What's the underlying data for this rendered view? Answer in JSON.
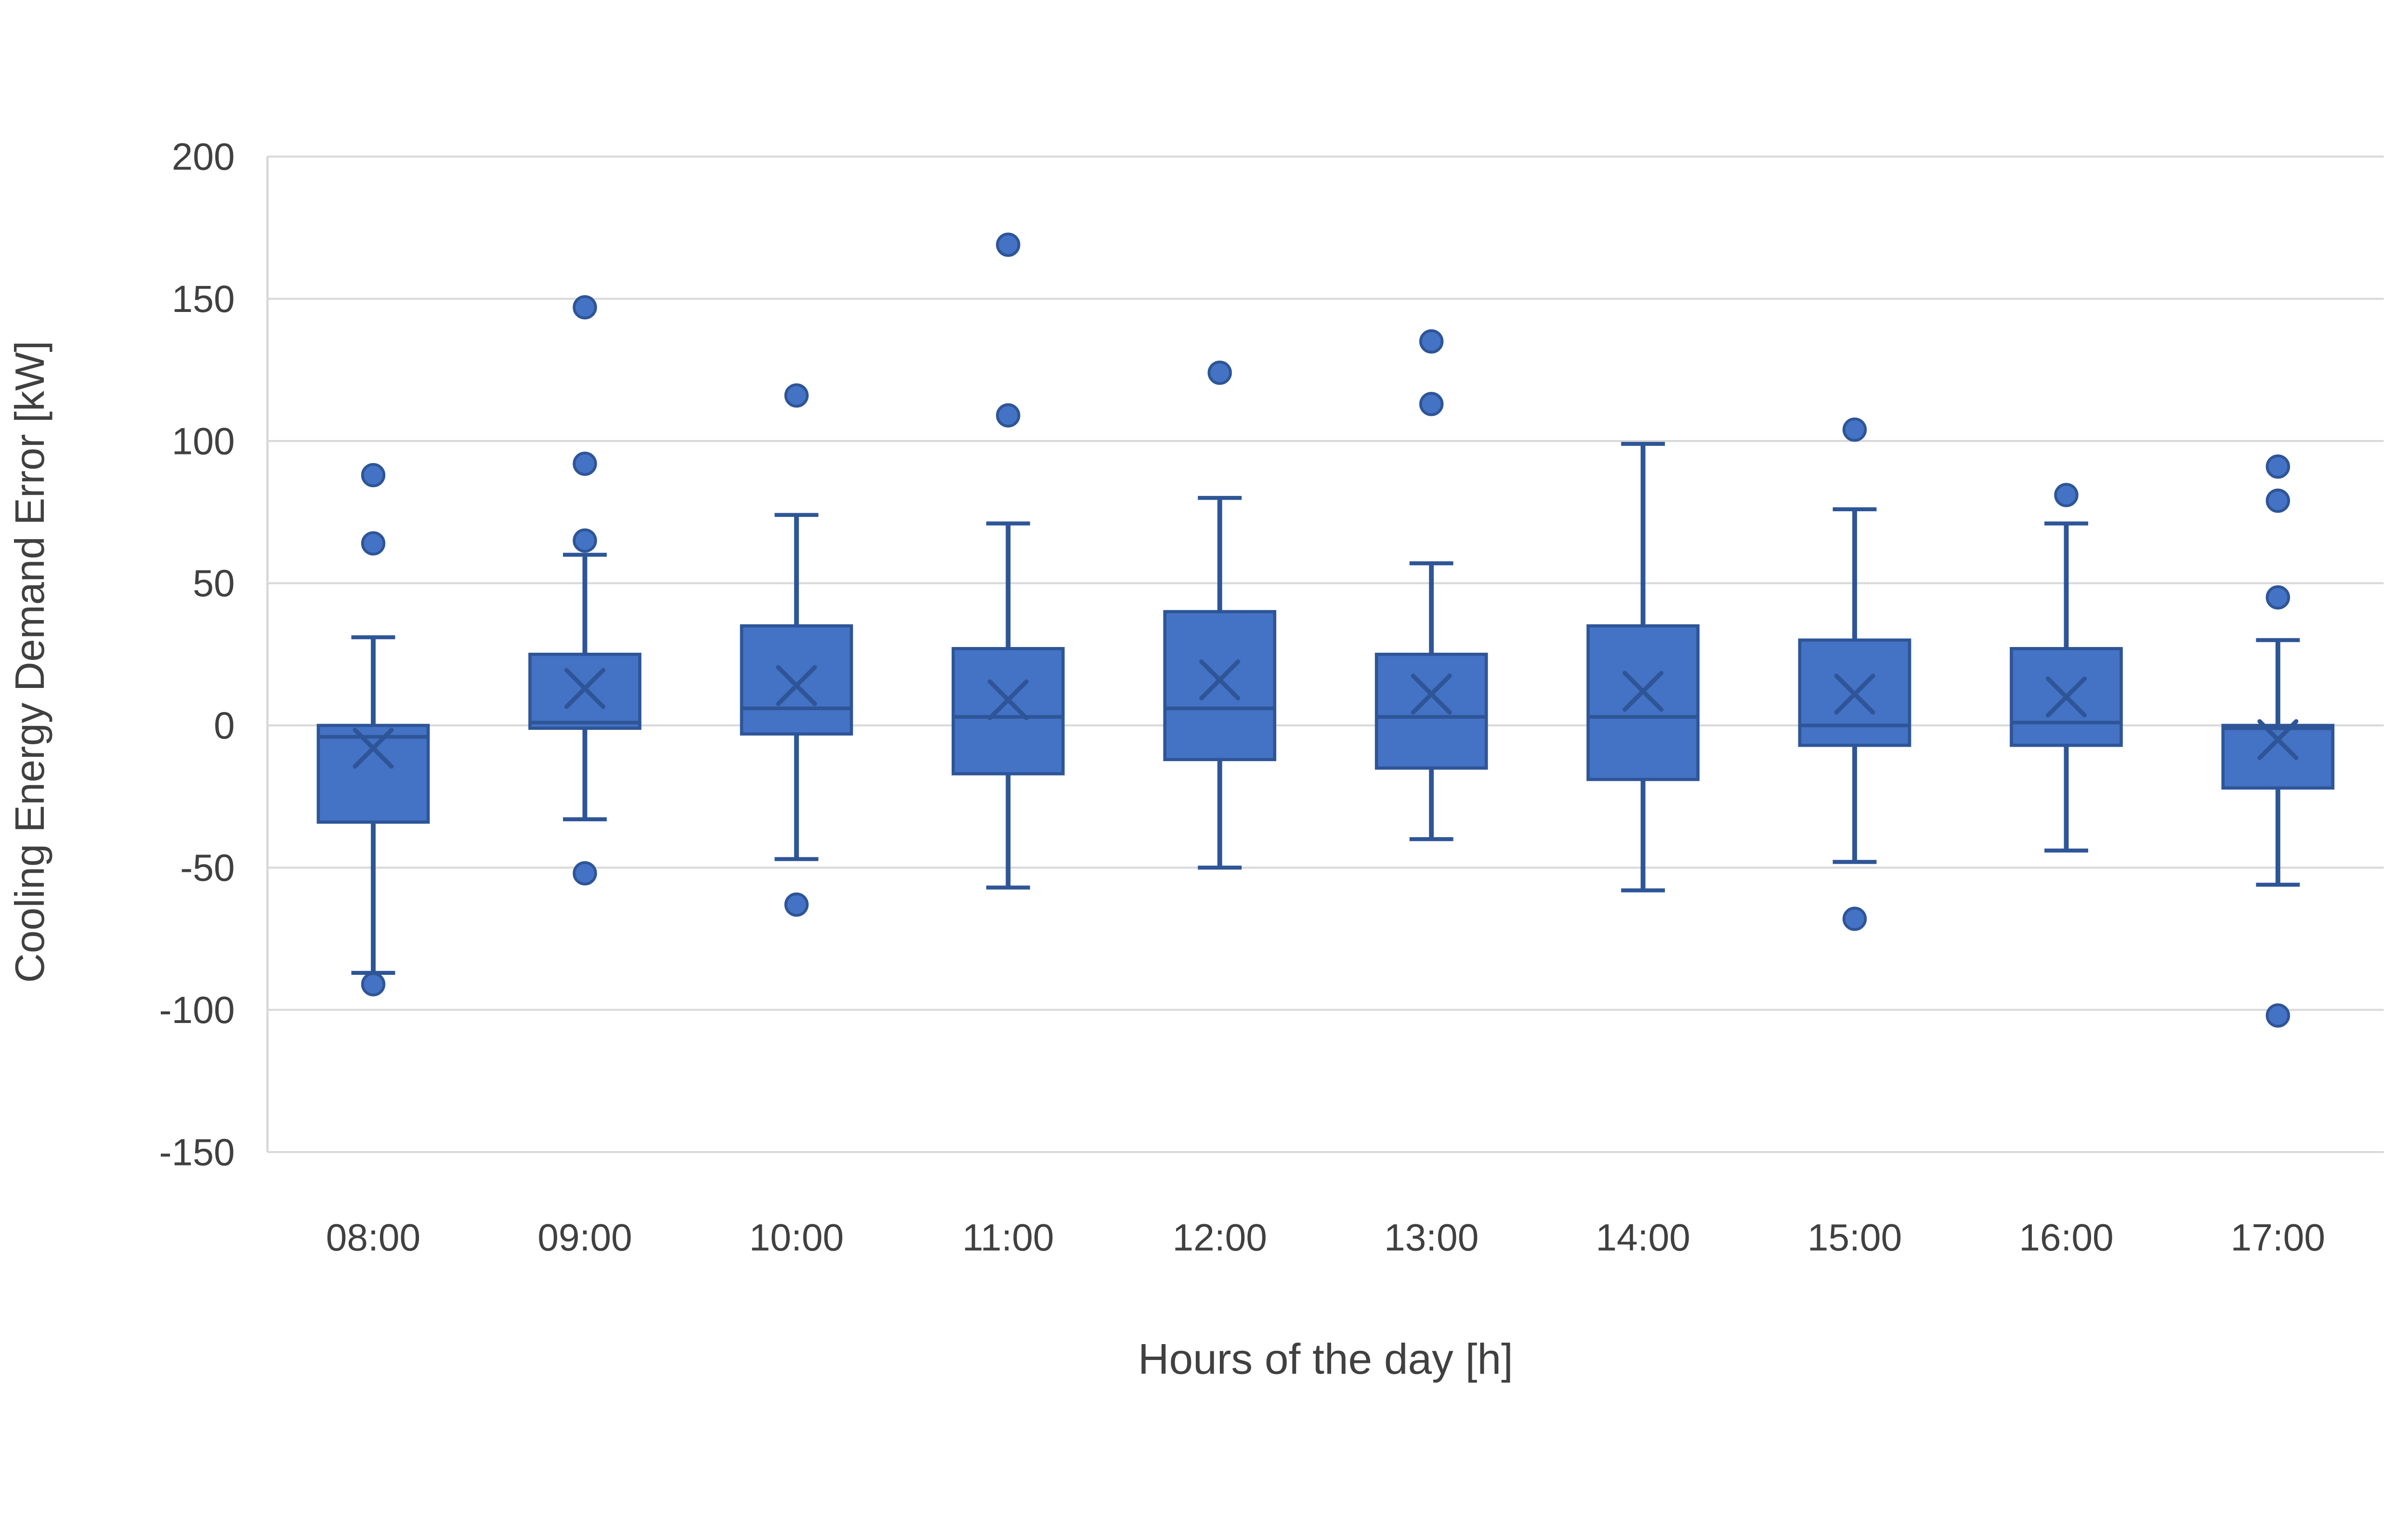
{
  "chart_data": {
    "type": "box",
    "title": "",
    "xlabel": "Hours of the day [h]",
    "ylabel": "Cooling Energy Demand Error [kW]",
    "ylim": [
      -150,
      200
    ],
    "ytick_interval": 50,
    "yticks": [
      200,
      150,
      100,
      50,
      0,
      -50,
      -100,
      -150
    ],
    "grid": true,
    "legend": false,
    "categories": [
      "08:00",
      "09:00",
      "10:00",
      "11:00",
      "12:00",
      "13:00",
      "14:00",
      "15:00",
      "16:00",
      "17:00"
    ],
    "series": [
      {
        "category": "08:00",
        "whisker_low": -87,
        "q1": -34,
        "median": -4,
        "mean": -8,
        "q3": 0,
        "whisker_high": 31,
        "outliers": [
          88,
          64,
          -91
        ]
      },
      {
        "category": "09:00",
        "whisker_low": -33,
        "q1": -1,
        "median": 1,
        "mean": 13,
        "q3": 25,
        "whisker_high": 60,
        "outliers": [
          147,
          92,
          65,
          -52
        ]
      },
      {
        "category": "10:00",
        "whisker_low": -47,
        "q1": -3,
        "median": 6,
        "mean": 14,
        "q3": 35,
        "whisker_high": 74,
        "outliers": [
          116,
          -63
        ]
      },
      {
        "category": "11:00",
        "whisker_low": -57,
        "q1": -17,
        "median": 3,
        "mean": 9,
        "q3": 27,
        "whisker_high": 71,
        "outliers": [
          169,
          109
        ]
      },
      {
        "category": "12:00",
        "whisker_low": -50,
        "q1": -12,
        "median": 6,
        "mean": 16,
        "q3": 40,
        "whisker_high": 80,
        "outliers": [
          124
        ]
      },
      {
        "category": "13:00",
        "whisker_low": -40,
        "q1": -15,
        "median": 3,
        "mean": 11,
        "q3": 25,
        "whisker_high": 57,
        "outliers": [
          135,
          113
        ]
      },
      {
        "category": "14:00",
        "whisker_low": -58,
        "q1": -19,
        "median": 3,
        "mean": 12,
        "q3": 35,
        "whisker_high": 99,
        "outliers": []
      },
      {
        "category": "15:00",
        "whisker_low": -48,
        "q1": -7,
        "median": 0,
        "mean": 11,
        "q3": 30,
        "whisker_high": 76,
        "outliers": [
          104,
          -68
        ]
      },
      {
        "category": "16:00",
        "whisker_low": -44,
        "q1": -7,
        "median": 1,
        "mean": 10,
        "q3": 27,
        "whisker_high": 71,
        "outliers": [
          81
        ]
      },
      {
        "category": "17:00",
        "whisker_low": -56,
        "q1": -22,
        "median": -1,
        "mean": -5,
        "q3": 0,
        "whisker_high": 30,
        "outliers": [
          91,
          79,
          45,
          -102
        ]
      }
    ]
  },
  "style": {
    "box_fill": "#4472C4",
    "box_stroke": "#2E5597",
    "whisker_color": "#2E5597",
    "mean_marker": "x",
    "outlier_marker": "circle",
    "grid_color": "#D9D9D9",
    "text_color": "#404040",
    "background": "#FFFFFF"
  }
}
